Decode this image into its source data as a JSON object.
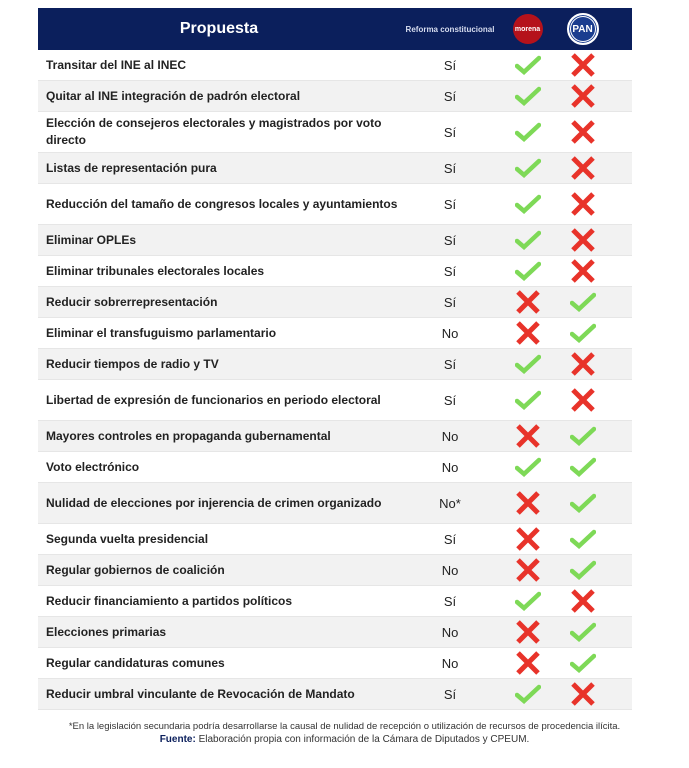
{
  "header": {
    "proposal": "Propuesta",
    "reform": "Reforma constitucional",
    "party1": "morena",
    "party2": "PAN"
  },
  "colors": {
    "header": "#0b1f5c",
    "check": "#7ed957",
    "cross": "#e8332a"
  },
  "rows": [
    {
      "label": "Transitar del INE al INEC",
      "reform": "Sí",
      "morena": "check",
      "pan": "cross"
    },
    {
      "label": "Quitar al INE integración de padrón electoral",
      "reform": "Sí",
      "morena": "check",
      "pan": "cross"
    },
    {
      "label": "Elección de consejeros electorales y magistrados por voto directo",
      "reform": "Sí",
      "morena": "check",
      "pan": "cross",
      "tall": true
    },
    {
      "label": "Listas de representación pura",
      "reform": "Sí",
      "morena": "check",
      "pan": "cross"
    },
    {
      "label": "Reducción del tamaño de congresos locales y ayuntamientos",
      "reform": "Sí",
      "morena": "check",
      "pan": "cross",
      "tall": true
    },
    {
      "label": "Eliminar OPLEs",
      "reform": "Sí",
      "morena": "check",
      "pan": "cross"
    },
    {
      "label": "Eliminar tribunales electorales locales",
      "reform": "Sí",
      "morena": "check",
      "pan": "cross"
    },
    {
      "label": "Reducir sobrerrepresentación",
      "reform": "Sí",
      "morena": "cross",
      "pan": "check"
    },
    {
      "label": "Eliminar el transfuguismo parlamentario",
      "reform": "No",
      "morena": "cross",
      "pan": "check"
    },
    {
      "label": "Reducir tiempos de radio y TV",
      "reform": "Sí",
      "morena": "check",
      "pan": "cross"
    },
    {
      "label": "Libertad de expresión de funcionarios en periodo electoral",
      "reform": "Sí",
      "morena": "check",
      "pan": "cross",
      "tall": true
    },
    {
      "label": "Mayores controles en propaganda gubernamental",
      "reform": "No",
      "morena": "cross",
      "pan": "check"
    },
    {
      "label": "Voto electrónico",
      "reform": "No",
      "morena": "check",
      "pan": "check"
    },
    {
      "label": "Nulidad de elecciones por injerencia de crimen organizado",
      "reform": "No*",
      "morena": "cross",
      "pan": "check",
      "tall": true
    },
    {
      "label": "Segunda vuelta presidencial",
      "reform": "Sí",
      "morena": "cross",
      "pan": "check"
    },
    {
      "label": "Regular gobiernos de coalición",
      "reform": "No",
      "morena": "cross",
      "pan": "check"
    },
    {
      "label": "Reducir financiamiento a partidos políticos",
      "reform": "Sí",
      "morena": "check",
      "pan": "cross"
    },
    {
      "label": "Elecciones primarias",
      "reform": "No",
      "morena": "cross",
      "pan": "check"
    },
    {
      "label": "Regular candidaturas comunes",
      "reform": "No",
      "morena": "cross",
      "pan": "check"
    },
    {
      "label": "Reducir umbral vinculante de Revocación de Mandato",
      "reform": "Sí",
      "morena": "check",
      "pan": "cross"
    }
  ],
  "footnote": "*En la legislación secundaria podría desarrollarse la causal de nulidad de recepción o utilización de recursos de procedencia ilícita.",
  "source_label": "Fuente:",
  "source": "Elaboración propia con información de la Cámara de Diputados y CPEUM."
}
